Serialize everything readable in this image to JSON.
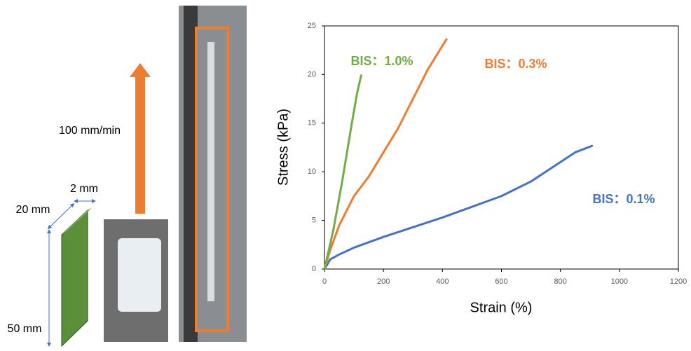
{
  "diagram": {
    "speed": "100 mm/min",
    "thickness": "2 mm",
    "width": "20 mm",
    "length": "50 mm"
  },
  "chart_data": {
    "type": "line",
    "x_label": "Strain (%)",
    "y_label": "Stress (kPa)",
    "xlim": [
      0,
      1200
    ],
    "xticks": [
      0,
      200,
      400,
      600,
      800,
      1000,
      1200
    ],
    "ylim": [
      0,
      25
    ],
    "yticks": [
      0,
      5,
      10,
      15,
      20,
      25
    ],
    "series": [
      {
        "name": "BIS：0.1%",
        "color": "#4472c4",
        "x": [
          0,
          20,
          50,
          100,
          200,
          300,
          400,
          500,
          600,
          700,
          800,
          850,
          910
        ],
        "values": [
          0,
          1,
          1.5,
          2.2,
          3.3,
          4.3,
          5.3,
          6.4,
          7.5,
          9.0,
          11,
          12,
          12.7
        ]
      },
      {
        "name": "BIS：0.3%",
        "color": "#ed7d31",
        "x": [
          0,
          20,
          50,
          100,
          150,
          200,
          250,
          300,
          350,
          415
        ],
        "values": [
          0,
          2,
          4.5,
          7.5,
          9.5,
          12,
          14.5,
          17.5,
          20.5,
          23.7
        ]
      },
      {
        "name": "BIS：1.0%",
        "color": "#70ad47",
        "x": [
          0,
          30,
          60,
          90,
          110,
          125
        ],
        "values": [
          0,
          4,
          9,
          14.5,
          18,
          20
        ]
      }
    ]
  }
}
